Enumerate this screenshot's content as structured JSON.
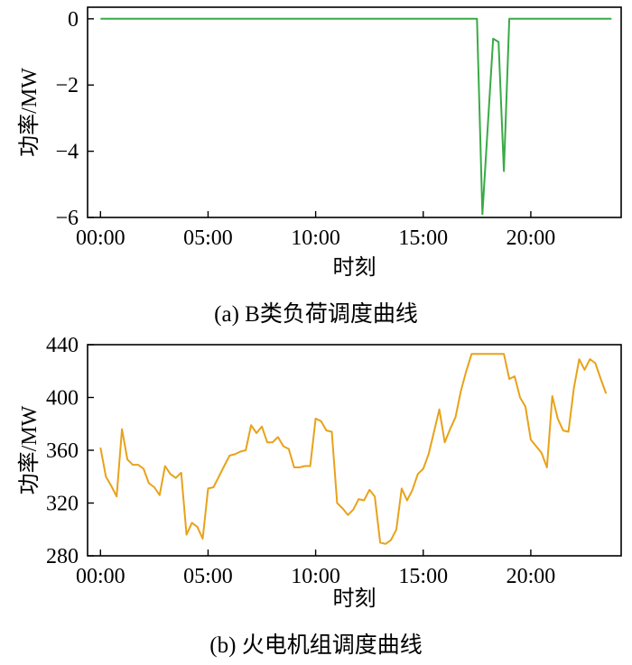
{
  "chart_data": [
    {
      "type": "line",
      "caption": "(a) B类负荷调度曲线",
      "xlabel": "时刻",
      "ylabel": "功率/MW",
      "xlim": [
        -0.6,
        24.2
      ],
      "ylim": [
        -6,
        0.35
      ],
      "xticks": [
        0,
        5,
        10,
        15,
        20
      ],
      "xtick_labels": [
        "00:00",
        "05:00",
        "10:00",
        "15:00",
        "20:00"
      ],
      "yticks": [
        0,
        -2,
        -4,
        -6
      ],
      "ytick_labels": [
        "0",
        "−2",
        "−4",
        "−6"
      ],
      "grid": false,
      "series": [
        {
          "color": "#3aaa45",
          "x": [
            0,
            17.5,
            17.75,
            18.25,
            18.5,
            18.75,
            19.0,
            23.75
          ],
          "y": [
            0,
            0,
            -5.9,
            -0.6,
            -0.7,
            -4.6,
            0,
            0
          ]
        }
      ]
    },
    {
      "type": "line",
      "caption": "(b) 火电机组调度曲线",
      "xlabel": "时刻",
      "ylabel": "功率/MW",
      "xlim": [
        -0.6,
        24.2
      ],
      "ylim": [
        280,
        440
      ],
      "xticks": [
        0,
        5,
        10,
        15,
        20
      ],
      "xtick_labels": [
        "00:00",
        "05:00",
        "10:00",
        "15:00",
        "20:00"
      ],
      "yticks": [
        440,
        400,
        360,
        320,
        280
      ],
      "ytick_labels": [
        "440",
        "400",
        "360",
        "320",
        "280"
      ],
      "grid": false,
      "series": [
        {
          "color": "#e8a21a",
          "x": [
            0,
            0.25,
            0.5,
            0.75,
            1.0,
            1.25,
            1.5,
            1.75,
            2.0,
            2.25,
            2.5,
            2.75,
            3.0,
            3.25,
            3.5,
            3.75,
            4.0,
            4.25,
            4.5,
            4.75,
            5.0,
            5.25,
            5.5,
            5.75,
            6.0,
            6.25,
            6.5,
            6.75,
            7.0,
            7.25,
            7.5,
            7.75,
            8.0,
            8.25,
            8.5,
            8.75,
            9.0,
            9.25,
            9.5,
            9.75,
            10.0,
            10.25,
            10.5,
            10.75,
            11.0,
            11.25,
            11.5,
            11.75,
            12.0,
            12.25,
            12.5,
            12.75,
            13.0,
            13.25,
            13.5,
            13.75,
            14.0,
            14.25,
            14.5,
            14.75,
            15.0,
            15.25,
            15.5,
            15.75,
            16.0,
            16.25,
            16.5,
            16.75,
            17.0,
            17.25,
            17.5,
            17.75,
            18.0,
            18.25,
            18.5,
            18.75,
            19.0,
            19.25,
            19.5,
            19.75,
            20.0,
            20.25,
            20.5,
            20.75,
            21.0,
            21.25,
            21.5,
            21.75,
            22.0,
            22.25,
            22.5,
            22.75,
            23.0,
            23.25,
            23.5
          ],
          "y": [
            362,
            340,
            333,
            325,
            376,
            353,
            349,
            349,
            346,
            335,
            332,
            326,
            348,
            342,
            339,
            343,
            296,
            305,
            302,
            293,
            331,
            332,
            340,
            348,
            356,
            357,
            359,
            360,
            379,
            373,
            378,
            366,
            366,
            370,
            363,
            361,
            347,
            347,
            348,
            348,
            384,
            382,
            375,
            374,
            320,
            316,
            311,
            315,
            323,
            322,
            330,
            325,
            290,
            289,
            292,
            300,
            331,
            322,
            330,
            342,
            346,
            357,
            374,
            391,
            366,
            376,
            385,
            405,
            420,
            433,
            433,
            433,
            433,
            433,
            433,
            433,
            414,
            416,
            400,
            393,
            368,
            363,
            358,
            347,
            401,
            384,
            375,
            374,
            407,
            429,
            421,
            429,
            426,
            414,
            403
          ]
        }
      ]
    }
  ]
}
